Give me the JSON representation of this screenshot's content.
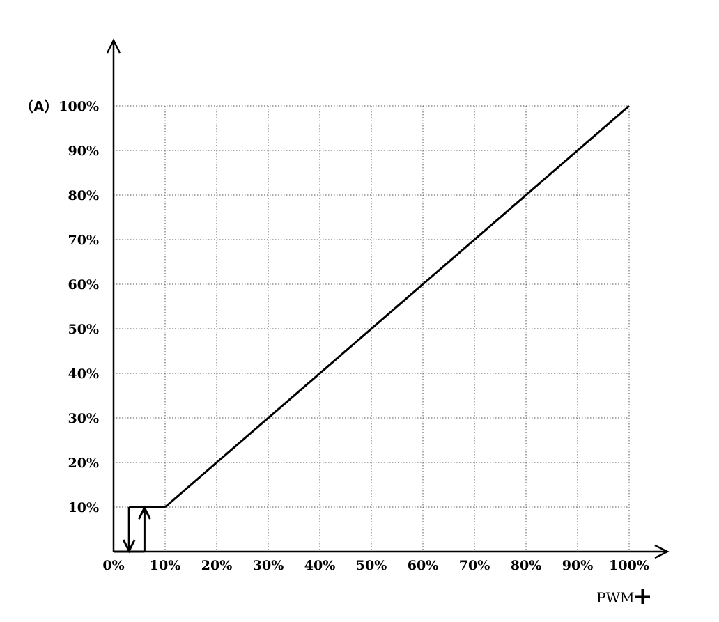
{
  "chart_data": {
    "type": "line",
    "ylabel": "（A）",
    "xlabel": "PWM",
    "xlabel_symbol": "+",
    "x_ticks": [
      "0%",
      "10%",
      "20%",
      "30%",
      "40%",
      "50%",
      "60%",
      "70%",
      "80%",
      "90%",
      "100%"
    ],
    "y_ticks": [
      "10%",
      "20%",
      "30%",
      "40%",
      "50%",
      "60%",
      "70%",
      "80%",
      "90%",
      "100%"
    ],
    "xlim": [
      0,
      100
    ],
    "ylim": [
      0,
      100
    ],
    "grid": true,
    "series": [
      {
        "x": [
          10,
          100
        ],
        "y": [
          10,
          100
        ]
      }
    ],
    "hysteresis": {
      "low_x": 3,
      "high_x": 6,
      "y_low": 0,
      "y_high": 10,
      "x_end": 10,
      "arrows": [
        "down",
        "up"
      ]
    }
  }
}
